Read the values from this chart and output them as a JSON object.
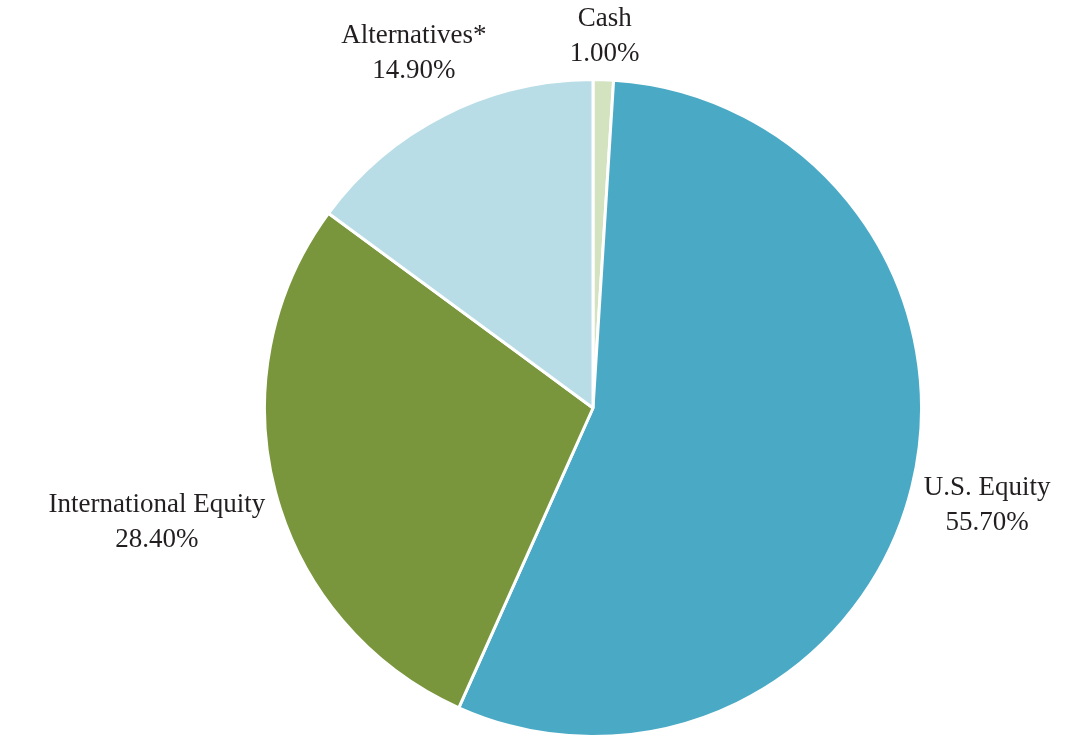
{
  "chart_data": {
    "type": "pie",
    "categories": [
      "Cash",
      "U.S. Equity",
      "International Equity",
      "Alternatives*"
    ],
    "values": [
      1.0,
      55.7,
      28.4,
      14.9
    ],
    "colors": [
      "#d3e3c0",
      "#4aaac6",
      "#7a963c",
      "#b8dde6"
    ],
    "value_labels": [
      "1.00%",
      "55.70%",
      "28.40%",
      "14.90%"
    ]
  }
}
